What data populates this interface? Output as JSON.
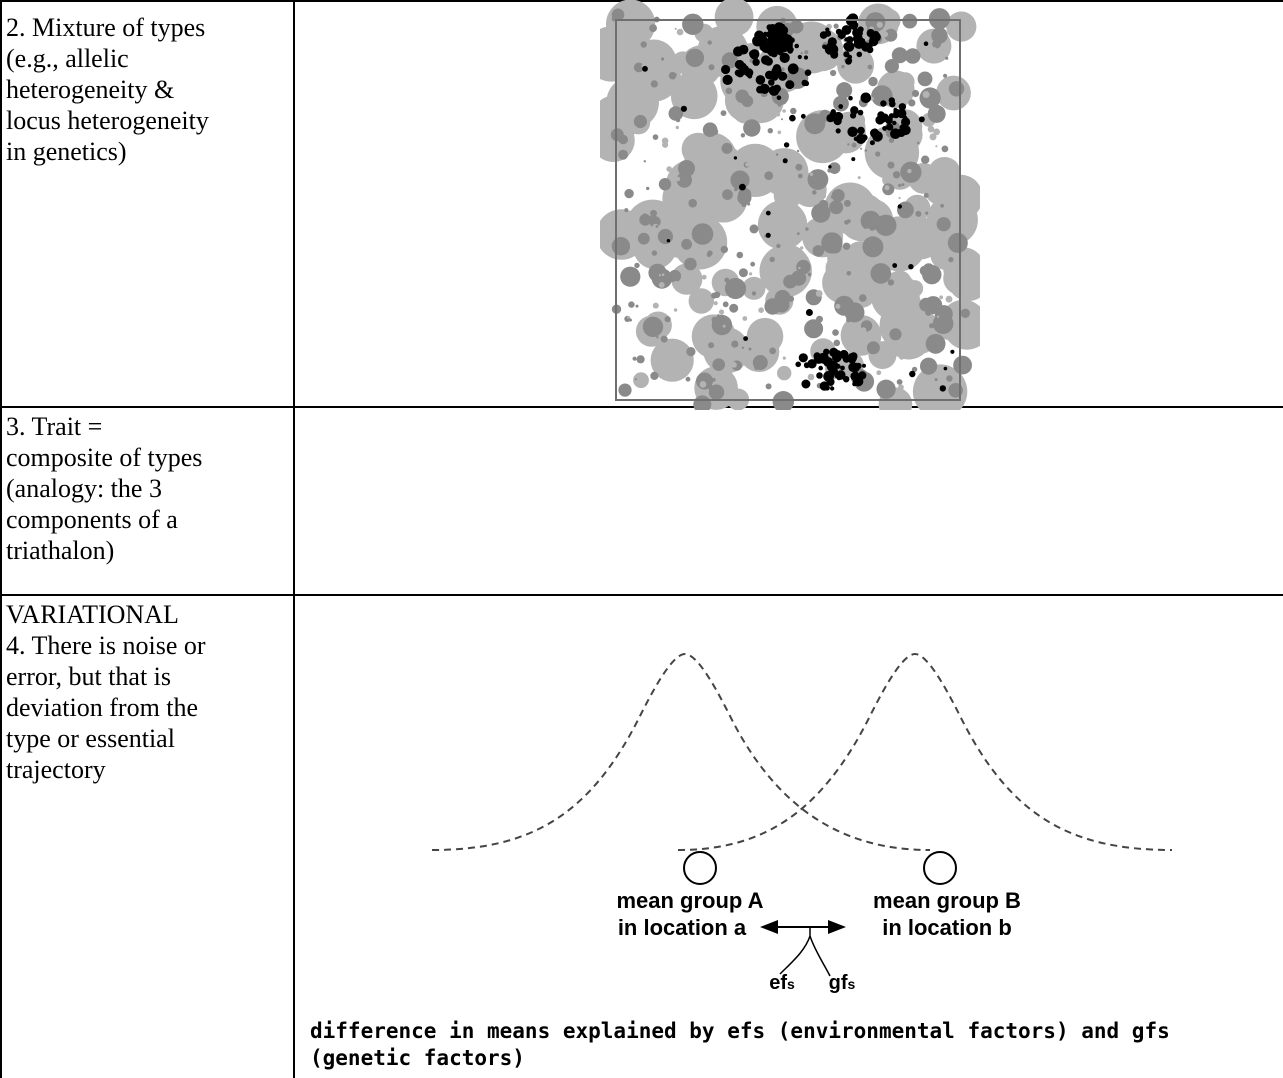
{
  "rows": [
    {
      "label": "2. Mixture of types\n(e.g., allelic\nheterogeneity &\nlocus heterogeneity\nin genetics)"
    },
    {
      "label": "3. Trait =\ncomposite of types\n(analogy: the 3\ncomponents of a\ntriathalon)"
    },
    {
      "label": "VARIATIONAL\n4. There is noise or\nerror, but that is\ndeviation from the\ntype or essential\ntrajectory"
    }
  ],
  "diagram": {
    "group_a_line1": "mean group A",
    "group_a_line2": "in location a",
    "group_b_line1": "mean group B",
    "group_b_line2": "in location b",
    "efs_main": "ef",
    "efs_sub": "s",
    "gfs_main": "gf",
    "gfs_sub": "s",
    "caption": "difference in means explained by efs (environmental factors) and gfs (genetic factors)"
  },
  "colors": {
    "light_gray": "#b3b3b3",
    "mid_gray": "#8a8a8a",
    "black": "#000000",
    "frame": "#6f6f6f"
  }
}
